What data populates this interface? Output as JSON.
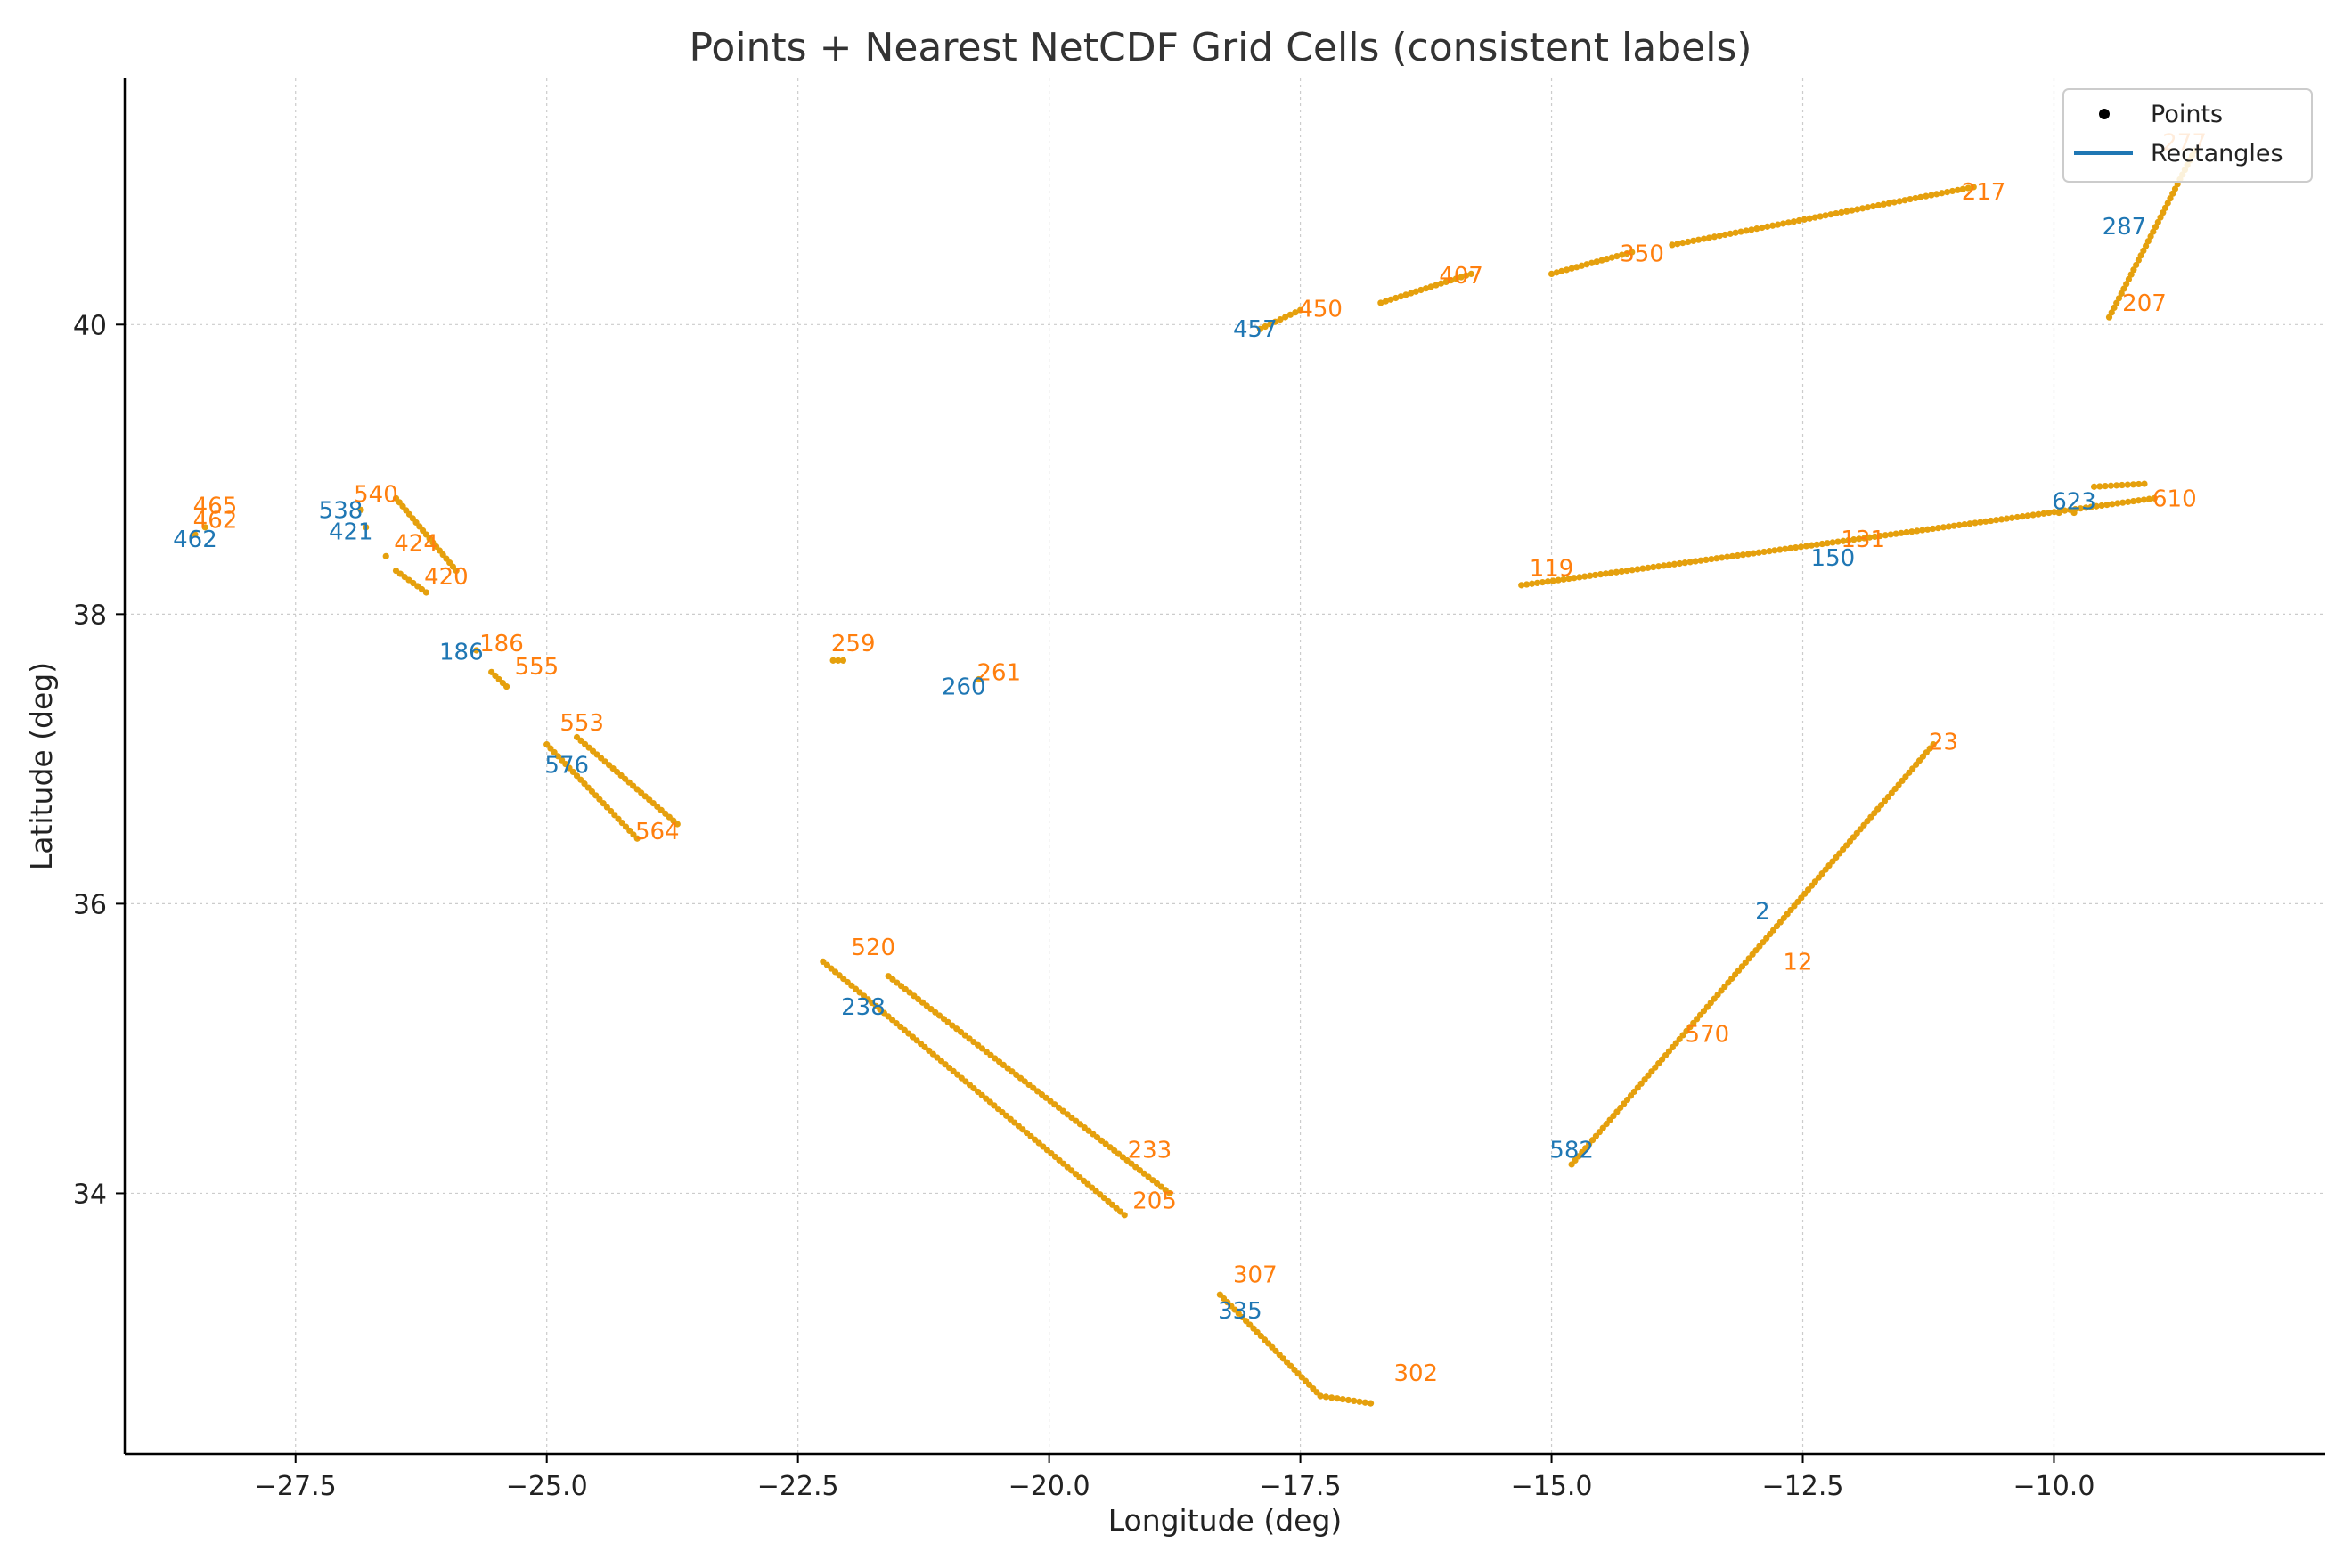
{
  "chart_data": {
    "type": "scatter",
    "title": "Points + Nearest NetCDF Grid Cells (consistent labels)",
    "xlabel": "Longitude (deg)",
    "ylabel": "Latitude (deg)",
    "xlim": [
      -29.2,
      -7.3
    ],
    "ylim": [
      32.2,
      41.7
    ],
    "xticks": [
      -27.5,
      -25.0,
      -22.5,
      -20.0,
      -17.5,
      -15.0,
      -12.5,
      -10.0
    ],
    "xtick_labels": [
      "−27.5",
      "−25.0",
      "−22.5",
      "−20.0",
      "−17.5",
      "−15.0",
      "−12.5",
      "−10.0"
    ],
    "yticks": [
      34,
      36,
      38,
      40
    ],
    "ytick_labels": [
      "34",
      "36",
      "38",
      "40"
    ],
    "grid": true,
    "legend_position": "top-right",
    "legend": [
      {
        "label": "Points",
        "marker": "dot",
        "color": "#000000"
      },
      {
        "label": "Rectangles",
        "marker": "line",
        "color": "#1f77b4"
      }
    ],
    "colors": {
      "points": "#e5a00d",
      "labels": "#ff7f0e",
      "rectangles": "#1f77b4"
    },
    "track_segments": [
      {
        "from": [
          -17.9,
          39.97
        ],
        "to": [
          -17.5,
          40.1
        ]
      },
      {
        "from": [
          -16.7,
          40.15
        ],
        "to": [
          -15.8,
          40.35
        ]
      },
      {
        "from": [
          -15.0,
          40.35
        ],
        "to": [
          -14.2,
          40.5
        ]
      },
      {
        "from": [
          -13.8,
          40.55
        ],
        "to": [
          -10.8,
          40.95
        ]
      },
      {
        "from": [
          -9.45,
          40.05
        ],
        "to": [
          -8.6,
          41.2
        ]
      },
      {
        "from": [
          -15.3,
          38.2
        ],
        "to": [
          -9.0,
          38.8
        ]
      },
      {
        "from": [
          -9.6,
          38.88
        ],
        "to": [
          -9.1,
          38.9
        ]
      },
      {
        "from": [
          -14.8,
          34.2
        ],
        "to": [
          -11.2,
          37.1
        ]
      },
      {
        "from": [
          -22.25,
          35.6
        ],
        "to": [
          -19.25,
          33.85
        ]
      },
      {
        "from": [
          -21.6,
          35.5
        ],
        "to": [
          -18.8,
          34.0
        ]
      },
      {
        "from": [
          -25.0,
          37.1
        ],
        "to": [
          -24.1,
          36.45
        ]
      },
      {
        "from": [
          -24.7,
          37.15
        ],
        "to": [
          -23.7,
          36.55
        ]
      },
      {
        "from": [
          -18.3,
          33.3
        ],
        "to": [
          -17.3,
          32.6
        ]
      },
      {
        "from": [
          -17.3,
          32.6
        ],
        "to": [
          -16.8,
          32.55
        ]
      },
      {
        "from": [
          -26.5,
          38.3
        ],
        "to": [
          -26.2,
          38.15
        ]
      },
      {
        "from": [
          -26.5,
          38.8
        ],
        "to": [
          -25.9,
          38.3
        ]
      },
      {
        "from": [
          -22.15,
          37.68
        ],
        "to": [
          -22.05,
          37.68
        ]
      },
      {
        "from": [
          -25.55,
          37.6
        ],
        "to": [
          -25.4,
          37.5
        ]
      }
    ],
    "isolated_points": [
      [
        -28.5,
        38.55
      ],
      [
        -28.4,
        38.6
      ],
      [
        -26.85,
        38.72
      ],
      [
        -26.8,
        38.6
      ],
      [
        -26.6,
        38.4
      ],
      [
        -25.7,
        37.75
      ],
      [
        -20.7,
        37.55
      ],
      [
        -9.95,
        38.7
      ],
      [
        -9.8,
        38.7
      ]
    ],
    "labels": [
      {
        "text": "462",
        "x": -28.5,
        "y": 38.52,
        "color": "blue"
      },
      {
        "text": "465",
        "x": -28.3,
        "y": 38.75,
        "color": "orange"
      },
      {
        "text": "462",
        "x": -28.3,
        "y": 38.65,
        "color": "orange"
      },
      {
        "text": "538",
        "x": -27.05,
        "y": 38.72,
        "color": "blue"
      },
      {
        "text": "540",
        "x": -26.7,
        "y": 38.83,
        "color": "orange"
      },
      {
        "text": "421",
        "x": -26.95,
        "y": 38.57,
        "color": "blue"
      },
      {
        "text": "424",
        "x": -26.3,
        "y": 38.49,
        "color": "orange"
      },
      {
        "text": "420",
        "x": -26.0,
        "y": 38.26,
        "color": "orange"
      },
      {
        "text": "186",
        "x": -25.85,
        "y": 37.74,
        "color": "blue"
      },
      {
        "text": "186",
        "x": -25.45,
        "y": 37.8,
        "color": "orange"
      },
      {
        "text": "555",
        "x": -25.1,
        "y": 37.64,
        "color": "orange"
      },
      {
        "text": "553",
        "x": -24.65,
        "y": 37.25,
        "color": "orange"
      },
      {
        "text": "576",
        "x": -24.8,
        "y": 36.96,
        "color": "blue"
      },
      {
        "text": "564",
        "x": -23.9,
        "y": 36.5,
        "color": "orange"
      },
      {
        "text": "259",
        "x": -21.95,
        "y": 37.8,
        "color": "orange"
      },
      {
        "text": "261",
        "x": -20.5,
        "y": 37.6,
        "color": "orange"
      },
      {
        "text": "260",
        "x": -20.85,
        "y": 37.5,
        "color": "blue"
      },
      {
        "text": "520",
        "x": -21.75,
        "y": 35.7,
        "color": "orange"
      },
      {
        "text": "238",
        "x": -21.85,
        "y": 35.29,
        "color": "blue"
      },
      {
        "text": "233",
        "x": -19.0,
        "y": 34.3,
        "color": "orange"
      },
      {
        "text": "205",
        "x": -18.95,
        "y": 33.95,
        "color": "orange"
      },
      {
        "text": "307",
        "x": -17.95,
        "y": 33.44,
        "color": "orange"
      },
      {
        "text": "335",
        "x": -18.1,
        "y": 33.19,
        "color": "blue"
      },
      {
        "text": "302",
        "x": -16.35,
        "y": 32.76,
        "color": "orange"
      },
      {
        "text": "457",
        "x": -17.95,
        "y": 39.97,
        "color": "blue"
      },
      {
        "text": "450",
        "x": -17.3,
        "y": 40.11,
        "color": "orange"
      },
      {
        "text": "407",
        "x": -15.9,
        "y": 40.34,
        "color": "orange"
      },
      {
        "text": "350",
        "x": -14.1,
        "y": 40.49,
        "color": "orange"
      },
      {
        "text": "217",
        "x": -10.7,
        "y": 40.92,
        "color": "orange"
      },
      {
        "text": "287",
        "x": -9.3,
        "y": 40.68,
        "color": "blue"
      },
      {
        "text": "207",
        "x": -9.1,
        "y": 40.15,
        "color": "orange"
      },
      {
        "text": "277",
        "x": -8.7,
        "y": 41.26,
        "color": "orange"
      },
      {
        "text": "119",
        "x": -15.0,
        "y": 38.32,
        "color": "orange"
      },
      {
        "text": "150",
        "x": -12.2,
        "y": 38.39,
        "color": "blue"
      },
      {
        "text": "131",
        "x": -11.9,
        "y": 38.52,
        "color": "orange"
      },
      {
        "text": "623",
        "x": -9.8,
        "y": 38.78,
        "color": "blue"
      },
      {
        "text": "610",
        "x": -8.8,
        "y": 38.8,
        "color": "orange"
      },
      {
        "text": "582",
        "x": -14.8,
        "y": 34.3,
        "color": "blue"
      },
      {
        "text": "570",
        "x": -13.45,
        "y": 35.1,
        "color": "orange"
      },
      {
        "text": "2",
        "x": -12.9,
        "y": 35.95,
        "color": "blue"
      },
      {
        "text": "12",
        "x": -12.55,
        "y": 35.6,
        "color": "orange"
      },
      {
        "text": "23",
        "x": -11.1,
        "y": 37.12,
        "color": "orange"
      }
    ]
  }
}
